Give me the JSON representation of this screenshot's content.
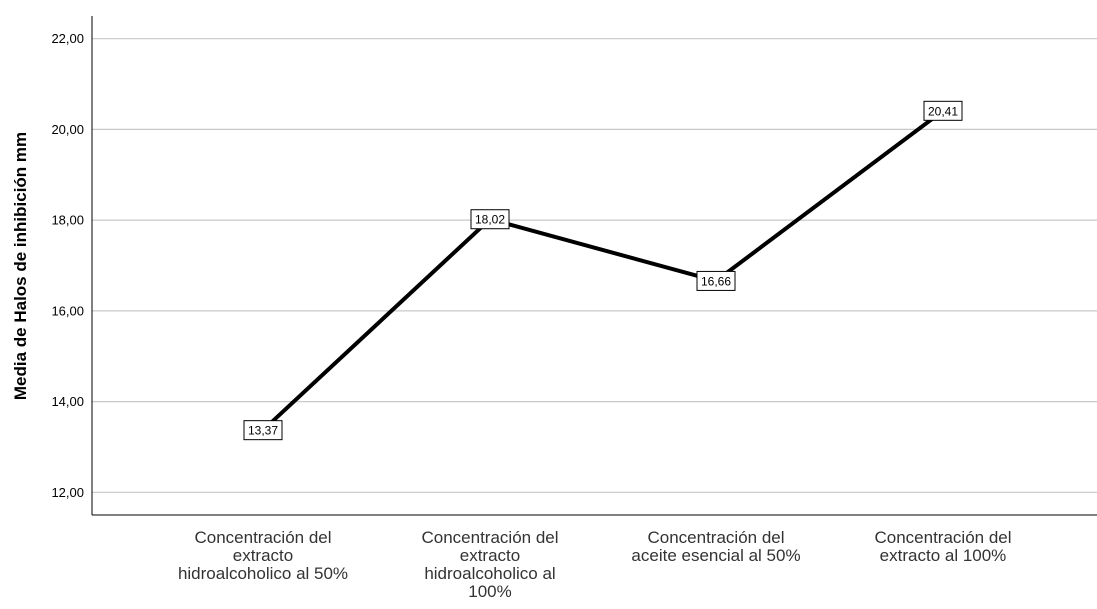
{
  "chart_data": {
    "type": "line",
    "title": "",
    "xlabel": "",
    "ylabel": "Media de Halos de inhibición mm",
    "categories": [
      "Concentración del extracto hidroalcoholico al 50%",
      "Concentración del extracto hidroalcoholico al 100%",
      "Concentración del aceite esencial al 50%",
      "Concentración del extracto al 100%"
    ],
    "category_lines": [
      [
        "Concentración del",
        "extracto",
        "hidroalcoholico al 50%"
      ],
      [
        "Concentración del",
        "extracto",
        "hidroalcoholico al",
        "100%"
      ],
      [
        "Concentración del",
        "aceite esencial al 50%"
      ],
      [
        "Concentración del",
        "extracto al 100%"
      ]
    ],
    "series": [
      {
        "values": [
          13.37,
          18.02,
          16.66,
          20.41
        ]
      }
    ],
    "data_labels": [
      "13,37",
      "18,02",
      "16,66",
      "20,41"
    ],
    "ylim": [
      11.5,
      22.5
    ],
    "yticks": [
      12,
      14,
      16,
      18,
      20,
      22
    ],
    "ytick_labels": [
      "12,00",
      "14,00",
      "16,00",
      "18,00",
      "20,00",
      "22,00"
    ],
    "grid": true,
    "line_color": "#000000",
    "grid_color": "#c8c8c8"
  }
}
